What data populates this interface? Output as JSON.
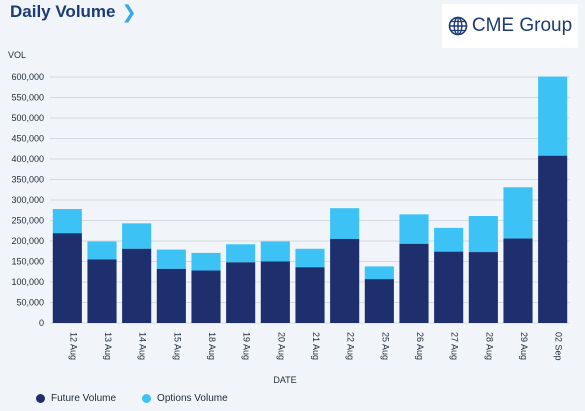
{
  "header": {
    "title": "Daily Volume",
    "chevron_icon": "chevron-right-icon"
  },
  "logo": {
    "text": "CME Group",
    "icon": "globe-icon"
  },
  "colors": {
    "future": "#1e2f6e",
    "options": "#3cc2f5",
    "gridline": "#d4d9e0",
    "text": "#1f2937"
  },
  "chart_data": {
    "type": "bar",
    "stacked": true,
    "ylabel": "VOL",
    "xlabel": "DATE",
    "ylim": [
      0,
      600000
    ],
    "yticks": [
      0,
      50000,
      100000,
      150000,
      200000,
      250000,
      300000,
      350000,
      400000,
      450000,
      500000,
      550000,
      600000
    ],
    "ytick_labels": [
      "0",
      "50,000",
      "100,000",
      "150,000",
      "200,000",
      "250,000",
      "300,000",
      "350,000",
      "400,000",
      "450,000",
      "500,000",
      "550,000",
      "600,000"
    ],
    "categories": [
      "12 Aug",
      "13 Aug",
      "14 Aug",
      "15 Aug",
      "18 Aug",
      "19 Aug",
      "20 Aug",
      "21 Aug",
      "22 Aug",
      "25 Aug",
      "26 Aug",
      "27 Aug",
      "28 Aug",
      "29 Aug",
      "02 Sep"
    ],
    "series": [
      {
        "name": "Future Volume",
        "values": [
          219000,
          155000,
          181000,
          132000,
          128000,
          148000,
          150000,
          136000,
          205000,
          107000,
          193000,
          174000,
          173000,
          206000,
          408000
        ]
      },
      {
        "name": "Options Volume",
        "values": [
          59000,
          44000,
          62000,
          47000,
          43000,
          44000,
          49000,
          45000,
          75000,
          31000,
          72000,
          58000,
          88000,
          125000,
          193000
        ]
      }
    ],
    "legend_position": "bottom-left",
    "grid": true
  }
}
